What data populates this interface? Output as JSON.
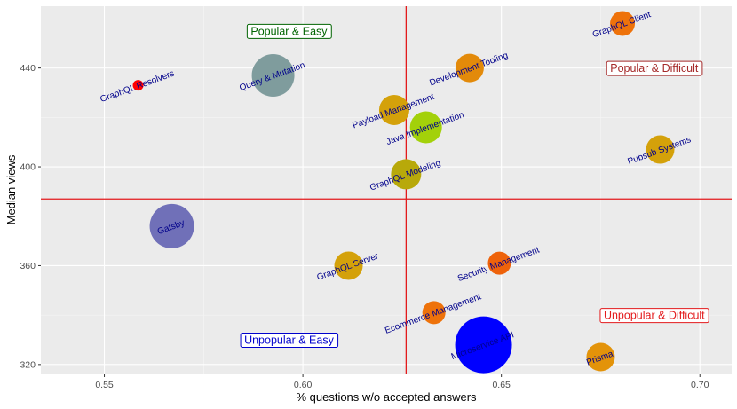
{
  "chart_data": {
    "type": "scatter",
    "title": "",
    "xlabel": "% questions w/o accepted answers",
    "ylabel": "Median views",
    "xlim": [
      0.534,
      0.708
    ],
    "ylim": [
      316,
      465
    ],
    "x_ticks": [
      0.55,
      0.6,
      0.65,
      0.7
    ],
    "x_tick_labels": [
      "0.55",
      "0.60",
      "0.65",
      "0.70"
    ],
    "y_ticks": [
      320,
      360,
      400,
      440
    ],
    "y_tick_labels": [
      "320",
      "360",
      "400",
      "440"
    ],
    "grid": true,
    "reference_lines": {
      "vertical_x": 0.626,
      "horizontal_y": 387,
      "color": "#e31a1c"
    },
    "quadrant_labels": [
      {
        "text": "Popular & Easy",
        "x": 0.5965,
        "y": 455,
        "color": "#006400"
      },
      {
        "text": "Popular & Difficult",
        "x": 0.6885,
        "y": 440,
        "color": "#a52a2a"
      },
      {
        "text": "Unpopular & Easy",
        "x": 0.5965,
        "y": 330,
        "color": "#0000cd"
      },
      {
        "text": "Unpopular & Difficult",
        "x": 0.6885,
        "y": 340,
        "color": "#e31a1c"
      }
    ],
    "points": [
      {
        "label": "GraphQL Resolvers",
        "x": 0.5585,
        "y": 433,
        "size": 6,
        "color": "#ff0000"
      },
      {
        "label": "Query & Mutation",
        "x": 0.5925,
        "y": 437,
        "size": 24,
        "color": "#7f9c9d"
      },
      {
        "label": "Gatsby",
        "x": 0.567,
        "y": 376,
        "size": 25,
        "color": "#7070b8"
      },
      {
        "label": "Payload Management",
        "x": 0.623,
        "y": 423,
        "size": 17,
        "color": "#d4a10a"
      },
      {
        "label": "Java Implementation",
        "x": 0.631,
        "y": 416,
        "size": 18,
        "color": "#a3d10a"
      },
      {
        "label": "GraphQL Modeling",
        "x": 0.626,
        "y": 397,
        "size": 17,
        "color": "#b8a90a"
      },
      {
        "label": "Development Tooling",
        "x": 0.642,
        "y": 440,
        "size": 16,
        "color": "#e38a0a"
      },
      {
        "label": "GraphQL Client",
        "x": 0.6805,
        "y": 458,
        "size": 14,
        "color": "#ee720a"
      },
      {
        "label": "Pubsub Systems",
        "x": 0.69,
        "y": 407,
        "size": 16,
        "color": "#d4a10a"
      },
      {
        "label": "GraphQL Server",
        "x": 0.6115,
        "y": 360,
        "size": 16,
        "color": "#d4a10a"
      },
      {
        "label": "Security Management",
        "x": 0.6495,
        "y": 361,
        "size": 13,
        "color": "#ee620a"
      },
      {
        "label": "Ecommerce   Management",
        "x": 0.633,
        "y": 341,
        "size": 13,
        "color": "#ee720a"
      },
      {
        "label": "Microservice API",
        "x": 0.6455,
        "y": 328,
        "size": 32,
        "color": "#0000ff"
      },
      {
        "label": "Prisma",
        "x": 0.675,
        "y": 323,
        "size": 16,
        "color": "#e3930a"
      }
    ]
  }
}
